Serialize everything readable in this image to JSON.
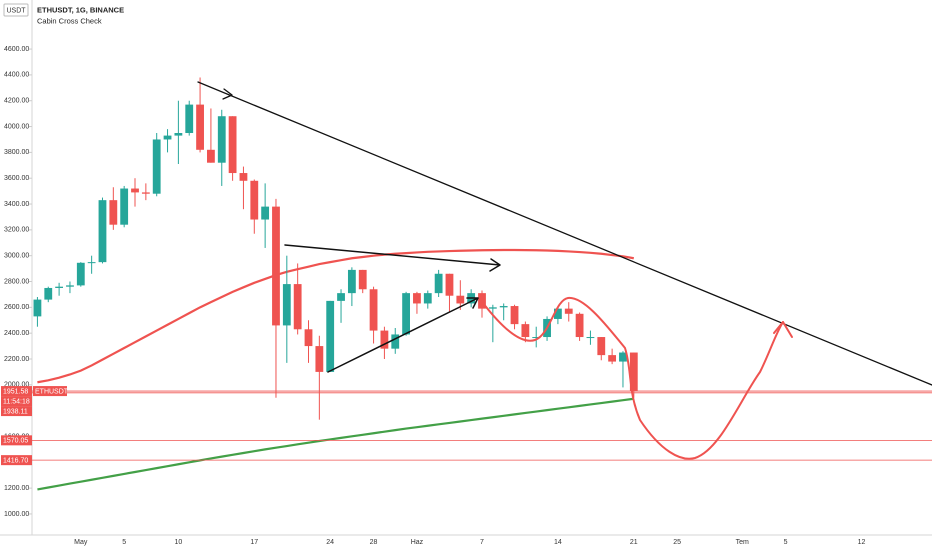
{
  "chart_data": {
    "type": "candlestick",
    "title": "ETHUSDT, 1G, BINANCE",
    "subtitle": "Cabin Cross Check",
    "y_unit": "USDT",
    "symbol_tag": "ETHUSDT",
    "countdown": "11:54:18",
    "categories": [
      null,
      null,
      null,
      null,
      "May",
      null,
      null,
      null,
      "5",
      null,
      null,
      null,
      null,
      "10",
      null,
      null,
      null,
      null,
      null,
      null,
      "17",
      null,
      null,
      null,
      null,
      null,
      null,
      "24",
      null,
      null,
      null,
      "28",
      null,
      null,
      null,
      "Haz",
      null,
      null,
      null,
      null,
      null,
      "7",
      null,
      null,
      null,
      null,
      null,
      null,
      "14",
      null,
      null,
      null,
      null,
      null,
      null,
      "21",
      null,
      null,
      null,
      "25",
      null,
      null,
      null,
      null,
      null,
      "Tem",
      null,
      null,
      null,
      "5",
      null,
      null,
      null,
      null,
      null,
      null,
      "12",
      null,
      null,
      null,
      null,
      null,
      null
    ],
    "open": [
      2530,
      2660,
      2750,
      2760,
      2770,
      2945,
      2950,
      3430,
      3240,
      3520,
      3490,
      3480,
      3900,
      3930,
      3950,
      4170,
      3820,
      3720,
      4080,
      3640,
      3580,
      3280,
      3380,
      2460,
      2780,
      2430,
      2300,
      2100,
      2650,
      2710,
      2890,
      2740,
      2420,
      2280,
      2390,
      2710,
      2630,
      2710,
      2860,
      2690,
      2630,
      2710,
      2590,
      2600,
      2610,
      2470,
      2370,
      2370,
      2510,
      2590,
      2550,
      2370,
      2370,
      2230,
      2180,
      2250,
      null,
      null,
      null,
      null,
      null,
      null,
      null,
      null,
      null,
      null,
      null,
      null,
      null,
      null,
      null,
      null,
      null,
      null,
      null,
      null,
      null,
      null,
      null,
      null,
      null,
      null,
      null
    ],
    "high": [
      2680,
      2760,
      2790,
      2800,
      2950,
      3000,
      3450,
      3530,
      3540,
      3600,
      3560,
      3950,
      3980,
      4200,
      4200,
      4380,
      4140,
      4130,
      4080,
      3690,
      3590,
      3560,
      3440,
      3000,
      2940,
      2500,
      2380,
      2650,
      2740,
      2910,
      2890,
      2760,
      2450,
      2440,
      2720,
      2720,
      2730,
      2890,
      2860,
      2810,
      2740,
      2730,
      2620,
      2630,
      2620,
      2490,
      2450,
      2530,
      2600,
      2640,
      2560,
      2420,
      2370,
      2280,
      2260,
      2250,
      null,
      null,
      null,
      null,
      null,
      null,
      null,
      null,
      null,
      null,
      null,
      null,
      null,
      null,
      null,
      null,
      null,
      null,
      null,
      null,
      null,
      null,
      null,
      null,
      null,
      null,
      null
    ],
    "low": [
      2450,
      2640,
      2690,
      2710,
      2760,
      2860,
      2940,
      3200,
      3220,
      3380,
      3430,
      3460,
      3800,
      3710,
      3930,
      3800,
      3720,
      3540,
      3580,
      3360,
      3170,
      3060,
      1900,
      2170,
      2390,
      2170,
      1730,
      2100,
      2480,
      2610,
      2710,
      2320,
      2200,
      2240,
      2380,
      2550,
      2590,
      2680,
      2560,
      2580,
      2600,
      2520,
      2330,
      2500,
      2430,
      2330,
      2290,
      2340,
      2470,
      2490,
      2340,
      2310,
      2190,
      2160,
      1980,
      1900,
      null,
      null,
      null,
      null,
      null,
      null,
      null,
      null,
      null,
      null,
      null,
      null,
      null,
      null,
      null,
      null,
      null,
      null,
      null,
      null,
      null,
      null,
      null,
      null,
      null,
      null,
      null
    ],
    "close": [
      2660,
      2750,
      2760,
      2770,
      2945,
      2950,
      3430,
      3240,
      3520,
      3490,
      3480,
      3900,
      3930,
      3950,
      4170,
      3820,
      3720,
      4080,
      3640,
      3580,
      3280,
      3380,
      2460,
      2780,
      2430,
      2300,
      2100,
      2650,
      2710,
      2890,
      2740,
      2420,
      2280,
      2390,
      2710,
      2630,
      2710,
      2860,
      2690,
      2630,
      2710,
      2590,
      2600,
      2610,
      2470,
      2370,
      2370,
      2510,
      2590,
      2550,
      2370,
      2370,
      2230,
      2180,
      2250,
      1951.58,
      null,
      null,
      null,
      null,
      null,
      null,
      null,
      null,
      null,
      null,
      null,
      null,
      null,
      null,
      null,
      null,
      null,
      null,
      null,
      null,
      null,
      null,
      null,
      null,
      null,
      null,
      null
    ],
    "up_color": "#26a69a",
    "down_color": "#ef5350",
    "series": [
      {
        "color": "#ef5350",
        "values": [
          2020,
          2035,
          2055,
          2080,
          2110,
          2150,
          2195,
          2240,
          2285,
          2330,
          2375,
          2420,
          2465,
          2510,
          2555,
          2600,
          2640,
          2680,
          2720,
          2755,
          2790,
          2820,
          2850,
          2875,
          2895,
          2915,
          2935,
          2950,
          2965,
          2980,
          2990,
          3000,
          3008,
          3015,
          3020,
          3025,
          3030,
          3033,
          3036,
          3038,
          3040,
          3042,
          3043,
          3044,
          3044,
          3043,
          3042,
          3040,
          3037,
          3033,
          3028,
          3022,
          3015,
          3005,
          2995,
          2980,
          null,
          null,
          null,
          null,
          null,
          null,
          null,
          null,
          null,
          null,
          null,
          null,
          null,
          null,
          null,
          null,
          null,
          null,
          null,
          null,
          null,
          null,
          null,
          null,
          null,
          null,
          null
        ]
      },
      {
        "color": "#43a047",
        "values": [
          1190,
          1205,
          1220,
          1235,
          1250,
          1265,
          1280,
          1295,
          1310,
          1325,
          1340,
          1355,
          1370,
          1385,
          1400,
          1415,
          1430,
          1444,
          1458,
          1472,
          1486,
          1500,
          1513,
          1526,
          1539,
          1552,
          1565,
          1577,
          1589,
          1601,
          1613,
          1625,
          1637,
          1649,
          1661,
          1672,
          1683,
          1694,
          1705,
          1716,
          1727,
          1738,
          1749,
          1760,
          1771,
          1782,
          1793,
          1804,
          1815,
          1826,
          1837,
          1848,
          1859,
          1870,
          1881,
          1892,
          null,
          null,
          null,
          null,
          null,
          null,
          null,
          null,
          null,
          null,
          null,
          null,
          null,
          null,
          null,
          null,
          null,
          null,
          null,
          null,
          null,
          null,
          null,
          null,
          null,
          null,
          null
        ]
      }
    ],
    "levels": [
      1938.11,
      1570.05,
      {
        "value": 1416.7,
        "label": "1416.70"
      }
    ],
    "level_color": "#ef5350",
    "ylim": [
      837,
      4980
    ],
    "yticks": [
      {
        "value": 1000,
        "label": "1000.00"
      },
      {
        "value": 1200,
        "label": "1200.00"
      },
      {
        "value": 1400,
        "label": "1400.00"
      },
      {
        "value": 1600,
        "label": "1600.00"
      },
      {
        "value": 1800,
        "label": "1800.00"
      },
      {
        "value": 2000,
        "label": "2000.00"
      },
      {
        "value": 2200,
        "label": "2200.00"
      },
      {
        "value": 2400,
        "label": "2400.00"
      },
      {
        "value": 2600,
        "label": "2600.00"
      },
      {
        "value": 2800,
        "label": "2800.00"
      },
      {
        "value": 3000,
        "label": "3000.00"
      },
      {
        "value": 3200,
        "label": "3200.00"
      },
      {
        "value": 3400,
        "label": "3400.00"
      },
      {
        "value": 3600,
        "label": "3600.00"
      },
      {
        "value": 3800,
        "label": "3800.00"
      },
      {
        "value": 4000,
        "label": "4000.00"
      },
      {
        "value": 4200,
        "label": "4200.00"
      },
      {
        "value": 4400,
        "label": "4400.00"
      },
      {
        "value": 4600,
        "label": "4600.00"
      }
    ]
  }
}
